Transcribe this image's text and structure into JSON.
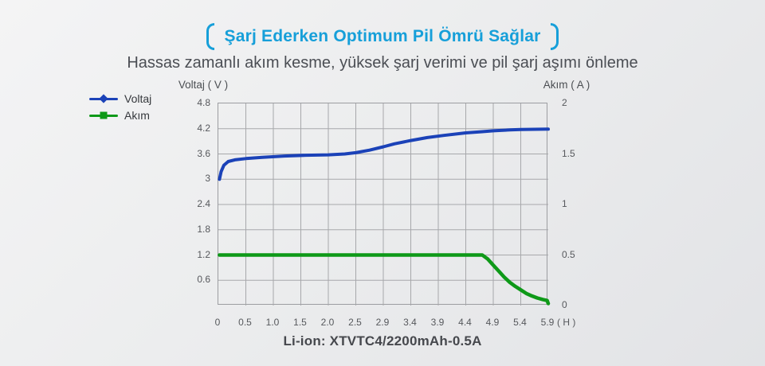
{
  "header": {
    "title": "Şarj Ederken Optimum Pil Ömrü Sağlar",
    "subtitle": "Hassas zamanlı akım kesme, yüksek şarj verimi ve pil şarj aşımı önleme"
  },
  "legend": {
    "voltage_label": "Voltaj",
    "current_label": "Akım"
  },
  "colors": {
    "title_blue": "#169fd9",
    "voltage_blue": "#1b42b8",
    "current_green": "#0e9918",
    "grid_gray": "#a7a8ab",
    "text_dark": "#46484d"
  },
  "chart_data": {
    "type": "line",
    "title": "Şarj Ederken Optimum Pil Ömrü Sağlar",
    "subtitle": "Hassas zamanlı akım kesme, yüksek şarj verimi ve pil şarj aşımı önleme",
    "caption": "Li-ion: XTVTC4/2200mAh-0.5A",
    "grid": true,
    "legend_position": "top-left",
    "x_axis": {
      "unit_label": "( H )",
      "tick_labels": [
        "0",
        "0.5",
        "1.0",
        "1.5",
        "2.0",
        "2.5",
        "2.9",
        "3.4",
        "3.9",
        "4.4",
        "4.9",
        "5.4",
        "5.9"
      ],
      "tick_values": [
        0,
        0.5,
        1.0,
        1.5,
        2.0,
        2.5,
        2.9,
        3.4,
        3.9,
        4.4,
        4.9,
        5.4,
        5.9
      ]
    },
    "y_axis_left": {
      "label": "Voltaj ( V )",
      "min": 0,
      "max": 4.8,
      "tick_labels": [
        "4.8",
        "4.2",
        "3.6",
        "3",
        "2.4",
        "1.8",
        "1.2",
        "0.6"
      ],
      "tick_values": [
        4.8,
        4.2,
        3.6,
        3.0,
        2.4,
        1.8,
        1.2,
        0.6
      ]
    },
    "y_axis_right": {
      "label": "Akım ( A )",
      "min": 0,
      "max": 2,
      "tick_labels": [
        "2",
        "1.5",
        "1",
        "0.5",
        "0"
      ],
      "tick_values": [
        2,
        1.5,
        1,
        0.5,
        0
      ]
    },
    "series": [
      {
        "name": "Voltaj",
        "axis": "left",
        "color": "#1b42b8",
        "marker": "diamond",
        "points": [
          [
            0.02,
            3.0
          ],
          [
            0.05,
            3.18
          ],
          [
            0.1,
            3.33
          ],
          [
            0.18,
            3.42
          ],
          [
            0.3,
            3.46
          ],
          [
            0.5,
            3.49
          ],
          [
            0.8,
            3.52
          ],
          [
            1.2,
            3.55
          ],
          [
            1.6,
            3.57
          ],
          [
            2.0,
            3.58
          ],
          [
            2.3,
            3.6
          ],
          [
            2.5,
            3.63
          ],
          [
            2.7,
            3.69
          ],
          [
            2.9,
            3.77
          ],
          [
            3.1,
            3.84
          ],
          [
            3.4,
            3.92
          ],
          [
            3.7,
            3.99
          ],
          [
            4.0,
            4.04
          ],
          [
            4.4,
            4.1
          ],
          [
            4.7,
            4.13
          ],
          [
            4.9,
            4.15
          ],
          [
            5.2,
            4.17
          ],
          [
            5.4,
            4.18
          ],
          [
            5.9,
            4.19
          ]
        ]
      },
      {
        "name": "Akım",
        "axis": "right",
        "color": "#0e9918",
        "marker": "square",
        "points": [
          [
            0.02,
            0.5
          ],
          [
            4.7,
            0.5
          ],
          [
            4.8,
            0.46
          ],
          [
            4.9,
            0.4
          ],
          [
            5.0,
            0.34
          ],
          [
            5.1,
            0.28
          ],
          [
            5.2,
            0.23
          ],
          [
            5.3,
            0.19
          ],
          [
            5.4,
            0.155
          ],
          [
            5.5,
            0.12
          ],
          [
            5.6,
            0.095
          ],
          [
            5.7,
            0.075
          ],
          [
            5.8,
            0.06
          ],
          [
            5.88,
            0.05
          ],
          [
            5.9,
            0.02
          ]
        ]
      }
    ]
  }
}
